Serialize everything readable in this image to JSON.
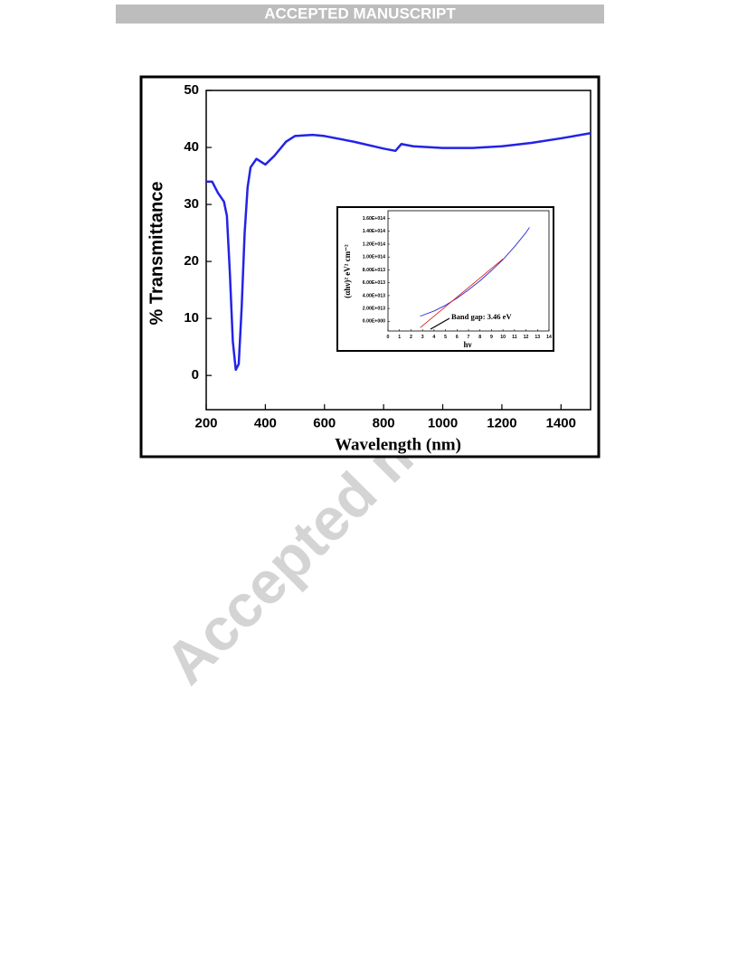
{
  "header": {
    "title": "ACCEPTED MANUSCRIPT"
  },
  "watermark": "Accepted ma",
  "chart_data": [
    {
      "type": "line",
      "xlabel": "Wavelength (nm)",
      "ylabel": "% Transmittance",
      "x": [
        200,
        220,
        240,
        260,
        270,
        280,
        290,
        300,
        310,
        320,
        330,
        340,
        350,
        370,
        400,
        430,
        470,
        500,
        560,
        600,
        700,
        800,
        840,
        860,
        900,
        1000,
        1100,
        1200,
        1300,
        1400,
        1500
      ],
      "series": [
        {
          "color": "#2323e6",
          "values": [
            34,
            34,
            32,
            30.5,
            28,
            18,
            6,
            1,
            2,
            12,
            25,
            33,
            36.5,
            38,
            37,
            38.5,
            41,
            42,
            42.2,
            42,
            41,
            39.8,
            39.4,
            40.6,
            40.2,
            39.9,
            39.9,
            40.2,
            40.8,
            41.6,
            42.5
          ]
        }
      ],
      "xlim": [
        200,
        1500
      ],
      "ylim": [
        -6,
        50
      ],
      "xticks": [
        200,
        400,
        600,
        800,
        1000,
        1200,
        1400
      ],
      "yticks": [
        0,
        10,
        20,
        30,
        40,
        50
      ]
    },
    {
      "type": "line",
      "xlabel": "hν",
      "ylabel": "(αhν)² eV² cm⁻²",
      "annotation": "Band gap: 3.46 eV",
      "series": [
        {
          "color": "#2b2bd6",
          "x": [
            2.8,
            4,
            5,
            6,
            7,
            8,
            9,
            10,
            11,
            12,
            12.3
          ],
          "values": [
            8000000000000,
            16000000000000,
            25000000000000,
            36000000000000,
            49000000000000,
            63000000000000,
            79000000000000,
            96000000000000,
            116000000000000,
            138000000000000,
            146000000000000
          ]
        },
        {
          "color": "#d42020",
          "x": [
            2.8,
            10
          ],
          "values": [
            -9800000000000,
            97000000000000
          ]
        }
      ],
      "xlim": [
        0,
        14
      ],
      "ylim": [
        -15000000000000,
        172000000000000
      ],
      "xticks": [
        0,
        1,
        2,
        3,
        4,
        5,
        6,
        7,
        8,
        9,
        10,
        11,
        12,
        13,
        14
      ],
      "yticks": [
        {
          "value": 0,
          "label": "0.00E+000"
        },
        {
          "value": 20000000000000,
          "label": "2.00E+013"
        },
        {
          "value": 40000000000000,
          "label": "4.00E+013"
        },
        {
          "value": 60000000000000,
          "label": "6.00E+013"
        },
        {
          "value": 80000000000000,
          "label": "8.00E+013"
        },
        {
          "value": 100000000000000,
          "label": "1.00E+014"
        },
        {
          "value": 120000000000000,
          "label": "1.20E+014"
        },
        {
          "value": 140000000000000,
          "label": "1.40E+014"
        },
        {
          "value": 160000000000000,
          "label": "1.60E+014"
        }
      ]
    }
  ]
}
